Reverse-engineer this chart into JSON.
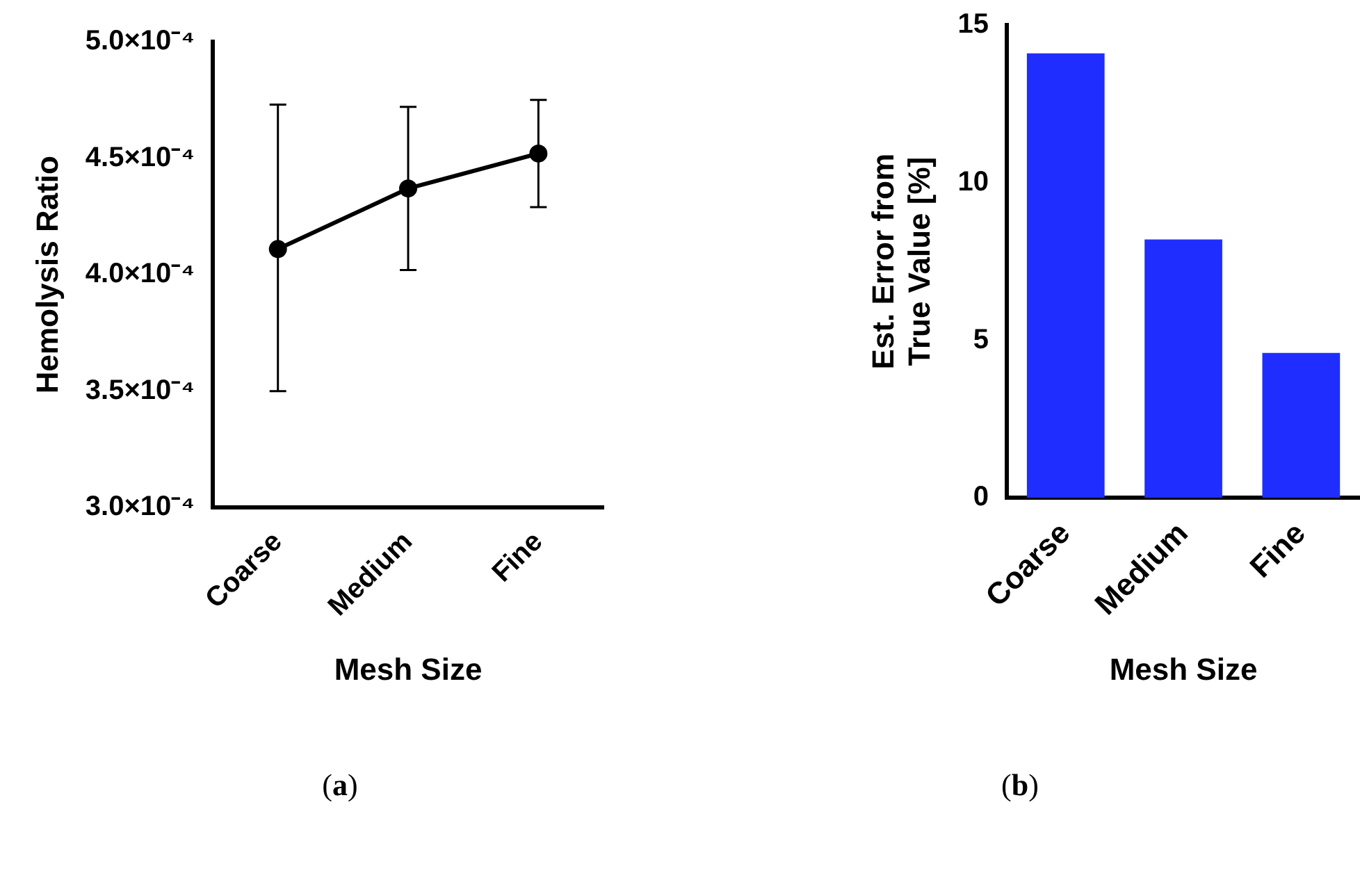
{
  "chart_data": [
    {
      "type": "line",
      "categories": [
        "Coarse",
        "Medium",
        "Fine"
      ],
      "xlabel": "Mesh Size",
      "ylabel": "Hemolysis Ratio",
      "series": [
        {
          "color": "#000000",
          "values": [
            0.000411,
            0.000437,
            0.000452
          ],
          "errors": [
            [
              0.00035,
              0.000473
            ],
            [
              0.000402,
              0.000472
            ],
            [
              0.000429,
              0.000475
            ]
          ]
        }
      ],
      "ylim": [
        0.0003,
        0.0005
      ],
      "yticks": [
        {
          "value": 0.0003,
          "label": "3.0×10⁻⁴"
        },
        {
          "value": 0.00035,
          "label": "3.5×10⁻⁴"
        },
        {
          "value": 0.0004,
          "label": "4.0×10⁻⁴"
        },
        {
          "value": 0.00045,
          "label": "4.5×10⁻⁴"
        },
        {
          "value": 0.0005,
          "label": "5.0×10⁻⁴"
        }
      ],
      "grid": false,
      "legend": false,
      "marker": "circle",
      "line_style": "solid",
      "annotations": [
        "(a)"
      ]
    },
    {
      "type": "bar",
      "categories": [
        "Coarse",
        "Medium",
        "Fine"
      ],
      "xlabel": "Mesh Size",
      "ylabel": "Est. Error from\nTrue Value [%]",
      "series": [
        {
          "color": "#1f2eff",
          "values": [
            14.1,
            8.2,
            4.6
          ]
        }
      ],
      "ylim": [
        0,
        15
      ],
      "yticks": [
        0,
        5,
        10,
        15
      ],
      "grid": false,
      "legend": false,
      "annotations": [
        "(b)"
      ]
    }
  ]
}
